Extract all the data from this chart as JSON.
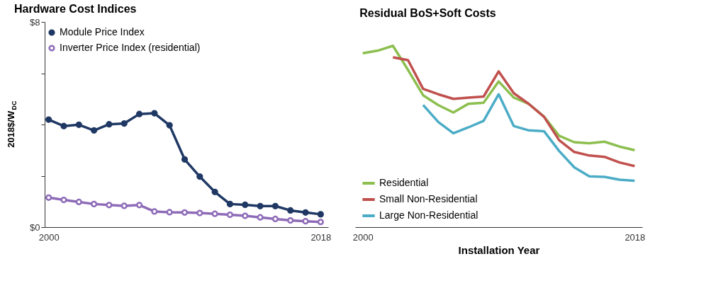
{
  "chart_data": [
    {
      "type": "line",
      "title": "Hardware Cost Indices",
      "ylabel": "2018$/W$_{DC}$",
      "x": [
        2000,
        2001,
        2002,
        2003,
        2004,
        2005,
        2006,
        2007,
        2008,
        2009,
        2010,
        2011,
        2012,
        2013,
        2014,
        2015,
        2016,
        2017,
        2018
      ],
      "series": [
        {
          "name": "Module Price Index",
          "color": "#1f3864",
          "values": [
            4.19,
            3.94,
            3.99,
            3.77,
            4.01,
            4.04,
            4.41,
            4.44,
            3.97,
            2.64,
            1.97,
            1.37,
            0.9,
            0.87,
            0.82,
            0.82,
            0.65,
            0.57,
            0.5
          ]
        },
        {
          "name": "Inverter Price Index (residential)",
          "color": "#8e6bb8",
          "values": [
            1.15,
            1.06,
            0.98,
            0.9,
            0.86,
            0.83,
            0.86,
            0.61,
            0.58,
            0.57,
            0.55,
            0.52,
            0.48,
            0.44,
            0.38,
            0.32,
            0.26,
            0.23,
            0.2
          ]
        }
      ],
      "xlim": [
        1999.5,
        2018.5
      ],
      "xticks": [
        2000,
        2018
      ],
      "ylim": [
        0,
        8
      ],
      "yticks": [
        {
          "value": 0,
          "label": "$0"
        },
        {
          "value": 2,
          "label": null
        },
        {
          "value": 4,
          "label": null
        },
        {
          "value": 6,
          "label": null
        },
        {
          "value": 8,
          "label": "$8"
        }
      ],
      "marker": "circle",
      "legend": "top left",
      "grid": false
    },
    {
      "type": "line",
      "title": "Residual BoS+Soft Costs",
      "xlabel": "Installation Year",
      "x": [
        2000,
        2001,
        2002,
        2003,
        2004,
        2005,
        2006,
        2007,
        2008,
        2009,
        2010,
        2011,
        2012,
        2013,
        2014,
        2015,
        2016,
        2017,
        2018
      ],
      "series": [
        {
          "name": "Residential",
          "color": "#8cbf4f",
          "values": [
            6.78,
            6.88,
            7.07,
            6.13,
            5.14,
            4.76,
            4.47,
            4.81,
            4.85,
            5.68,
            5.05,
            4.8,
            4.31,
            3.56,
            3.31,
            3.27,
            3.33,
            3.14,
            3.0
          ]
        },
        {
          "name": "Small Non-Residential",
          "color": "#c0504d",
          "values": [
            null,
            null,
            6.62,
            6.51,
            5.39,
            5.18,
            5.0,
            5.05,
            5.09,
            6.07,
            5.22,
            4.8,
            4.3,
            3.39,
            2.93,
            2.79,
            2.74,
            2.52,
            2.38
          ]
        },
        {
          "name": "Large Non-Residential",
          "color": "#4bacc6",
          "values": [
            null,
            null,
            null,
            null,
            4.76,
            4.1,
            3.66,
            3.89,
            4.14,
            5.18,
            3.94,
            3.77,
            3.74,
            2.97,
            2.33,
            1.98,
            1.96,
            1.85,
            1.81
          ]
        }
      ],
      "xlim": [
        1999.5,
        2018.5
      ],
      "xticks": [
        2000,
        2018
      ],
      "ylim": [
        0,
        8
      ],
      "tick_labels": "x",
      "marker": "none",
      "legend": "bottom left",
      "grid": false
    }
  ]
}
